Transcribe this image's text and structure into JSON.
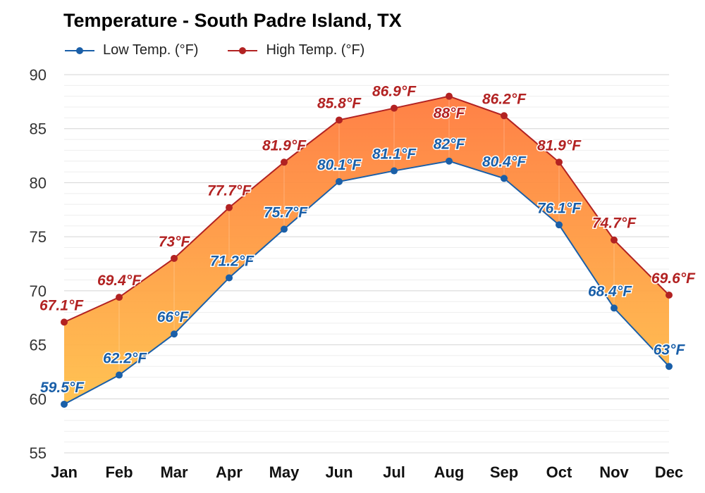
{
  "title": "Temperature - South Padre Island, TX",
  "legend": {
    "low_label": "Low Temp. (°F)",
    "high_label": "High Temp. (°F)"
  },
  "colors": {
    "low": "#1a5fa8",
    "high": "#b22222",
    "fill_top": "#ff7a3d",
    "fill_bottom": "#ffc04a",
    "grid": "#dddddd"
  },
  "chart_data": {
    "type": "area",
    "title": "Temperature - South Padre Island, TX",
    "categories": [
      "Jan",
      "Feb",
      "Mar",
      "Apr",
      "May",
      "Jun",
      "Jul",
      "Aug",
      "Sep",
      "Oct",
      "Nov",
      "Dec"
    ],
    "series": [
      {
        "name": "Low Temp. (°F)",
        "values": [
          59.5,
          62.2,
          66,
          71.2,
          75.7,
          80.1,
          81.1,
          82,
          80.4,
          76.1,
          68.4,
          63
        ],
        "labels": [
          "59.5°F",
          "62.2°F",
          "66°F",
          "71.2°F",
          "75.7°F",
          "80.1°F",
          "81.1°F",
          "82°F",
          "80.4°F",
          "76.1°F",
          "68.4°F",
          "63°F"
        ]
      },
      {
        "name": "High Temp. (°F)",
        "values": [
          67.1,
          69.4,
          73,
          77.7,
          81.9,
          85.8,
          86.9,
          88,
          86.2,
          81.9,
          74.7,
          69.6
        ],
        "labels": [
          "67.1°F",
          "69.4°F",
          "73°F",
          "77.7°F",
          "81.9°F",
          "85.8°F",
          "86.9°F",
          "88°F",
          "86.2°F",
          "81.9°F",
          "74.7°F",
          "69.6°F"
        ]
      }
    ],
    "yticks": [
      "55",
      "60",
      "65",
      "70",
      "75",
      "80",
      "85",
      "90"
    ],
    "ylim": [
      55,
      90
    ],
    "grid": true,
    "legend_position": "top-left"
  }
}
